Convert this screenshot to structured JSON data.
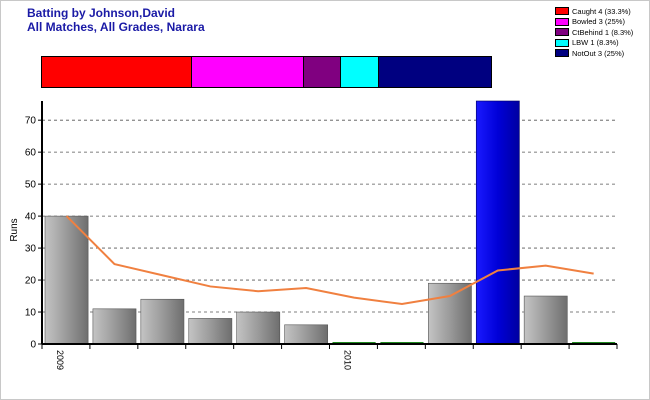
{
  "title_line1": "Batting by Johnson,David",
  "title_line2": "All Matches, All Grades, Narara",
  "legend": [
    {
      "label": "Caught 4 (33.3%)",
      "color": "#ff0000"
    },
    {
      "label": "Bowled 3 (25%)",
      "color": "#ff00ff"
    },
    {
      "label": "CtBehind 1 (8.3%)",
      "color": "#800080"
    },
    {
      "label": "LBW 1 (8.3%)",
      "color": "#00ffff"
    },
    {
      "label": "NotOut 3 (25%)",
      "color": "#000080"
    }
  ],
  "dismissals": [
    {
      "name": "Caught",
      "count": 4,
      "color": "#ff0000"
    },
    {
      "name": "Bowled",
      "count": 3,
      "color": "#ff00ff"
    },
    {
      "name": "CtBehind",
      "count": 1,
      "color": "#800080"
    },
    {
      "name": "LBW",
      "count": 1,
      "color": "#00ffff"
    },
    {
      "name": "NotOut",
      "count": 3,
      "color": "#000080"
    }
  ],
  "chart_data": {
    "type": "bar",
    "ylabel": "Runs",
    "ylim": [
      0,
      76
    ],
    "yticks": [
      0,
      10,
      20,
      30,
      40,
      50,
      60,
      70
    ],
    "grid": true,
    "x_tick_labels": [
      {
        "label": "2009",
        "index": 0
      },
      {
        "label": "2010",
        "index": 6
      }
    ],
    "bars": [
      {
        "value": 40,
        "highlight": false
      },
      {
        "value": 11,
        "highlight": false
      },
      {
        "value": 14,
        "highlight": false
      },
      {
        "value": 8,
        "highlight": false
      },
      {
        "value": 10,
        "highlight": false
      },
      {
        "value": 6,
        "highlight": false
      },
      {
        "value": 0,
        "highlight": false
      },
      {
        "value": 0,
        "highlight": false
      },
      {
        "value": 19,
        "highlight": false
      },
      {
        "value": 76,
        "highlight": true
      },
      {
        "value": 15,
        "highlight": false
      },
      {
        "value": 0,
        "highlight": false
      }
    ],
    "trend_line": [
      40,
      25,
      21.5,
      18,
      16.5,
      17.5,
      14.5,
      12.5,
      15,
      23,
      24.5,
      22
    ],
    "colors": {
      "bar": "#9a9a9a",
      "highlight": "#0000e0",
      "trend": "#f08040"
    }
  }
}
